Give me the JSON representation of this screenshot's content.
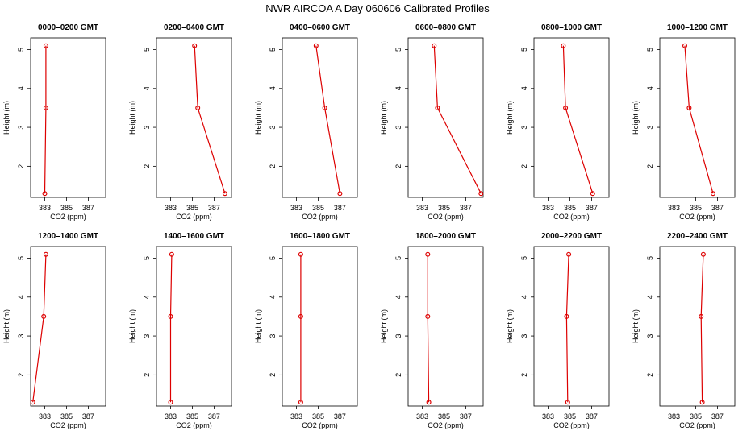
{
  "chart_data": {
    "title": "NWR AIRCOA A  Day 060606  Calibrated Profiles",
    "type": "line",
    "line_color": "#dd0000",
    "x_ticks": [
      383,
      385,
      387
    ],
    "y_ticks": [
      2,
      3,
      4,
      5
    ],
    "xlim": [
      381.7,
      388.6
    ],
    "ylim": [
      1.2,
      5.3
    ],
    "xlabel": "CO2 (ppm)",
    "ylabel": "Height (m)",
    "heights": [
      1.3,
      3.5,
      5.1
    ],
    "panels": [
      {
        "title": "0000–0200 GMT",
        "co2": [
          383.0,
          383.1,
          383.1
        ]
      },
      {
        "title": "0200–0400 GMT",
        "co2": [
          388.0,
          385.5,
          385.2
        ]
      },
      {
        "title": "0400–0600 GMT",
        "co2": [
          387.0,
          385.6,
          384.8
        ]
      },
      {
        "title": "0600–0800 GMT",
        "co2": [
          388.4,
          384.4,
          384.1
        ]
      },
      {
        "title": "0800–1000 GMT",
        "co2": [
          387.1,
          384.6,
          384.4
        ]
      },
      {
        "title": "1000–1200 GMT",
        "co2": [
          386.6,
          384.4,
          384.0
        ]
      },
      {
        "title": "1200–1400 GMT",
        "co2": [
          381.9,
          382.9,
          383.1
        ]
      },
      {
        "title": "1400–1600 GMT",
        "co2": [
          383.0,
          383.0,
          383.1
        ]
      },
      {
        "title": "1600–1800 GMT",
        "co2": [
          383.4,
          383.4,
          383.4
        ]
      },
      {
        "title": "1800–2000 GMT",
        "co2": [
          383.6,
          383.5,
          383.5
        ]
      },
      {
        "title": "2000–2200 GMT",
        "co2": [
          384.8,
          384.7,
          384.9
        ]
      },
      {
        "title": "2200–2400 GMT",
        "co2": [
          385.6,
          385.5,
          385.7
        ]
      }
    ]
  }
}
